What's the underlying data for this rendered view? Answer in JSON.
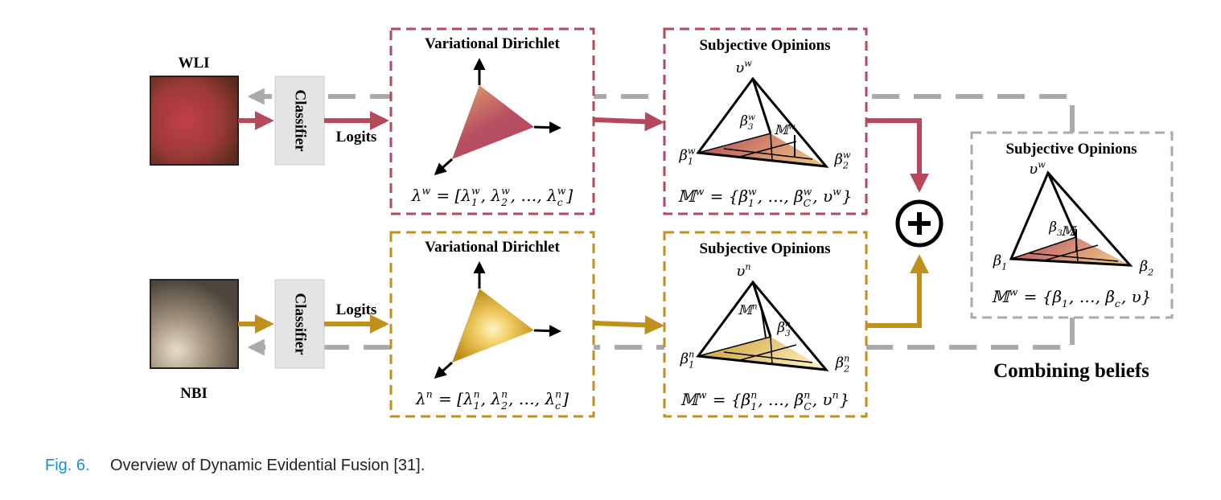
{
  "branches": [
    {
      "input": "WLI",
      "classifier": "Classifier",
      "logits": "Logits",
      "dirichlet": {
        "title": "Variational Dirichlet",
        "formula": [
          {
            "b": "λ",
            "sup": "w"
          },
          {
            "b": " = ["
          },
          {
            "b": "λ",
            "sub": "1",
            "sup": "w"
          },
          {
            "b": ", "
          },
          {
            "b": "λ",
            "sub": "2",
            "sup": "w"
          },
          {
            "b": ", …, "
          },
          {
            "b": "λ",
            "sub": "c",
            "sup": "w"
          },
          {
            "b": "]"
          }
        ]
      },
      "opinions": {
        "title": "Subjective Opinions",
        "top": [
          {
            "b": "υ",
            "sup": "w"
          }
        ],
        "beta3": [
          {
            "b": "β",
            "sub": "3",
            "sup": "w"
          }
        ],
        "mass": [
          {
            "b": "𝕄",
            "sup": "w"
          }
        ],
        "beta1": [
          {
            "b": "β",
            "sub": "1",
            "sup": "w"
          }
        ],
        "beta2": [
          {
            "b": "β",
            "sub": "2",
            "sup": "w"
          }
        ],
        "formula": [
          {
            "b": "𝕄",
            "sup": "w"
          },
          {
            "b": " = {"
          },
          {
            "b": "β",
            "sub": "1",
            "sup": "w"
          },
          {
            "b": ", …, "
          },
          {
            "b": "β",
            "sub": "C",
            "sup": "w"
          },
          {
            "b": ", "
          },
          {
            "b": "υ",
            "sup": "w"
          },
          {
            "b": "}"
          }
        ]
      }
    },
    {
      "input": "NBI",
      "classifier": "Classifier",
      "logits": "Logits",
      "dirichlet": {
        "title": "Variational Dirichlet",
        "formula": [
          {
            "b": "λ",
            "sup": "n"
          },
          {
            "b": " = ["
          },
          {
            "b": "λ",
            "sub": "1",
            "sup": "n"
          },
          {
            "b": ", "
          },
          {
            "b": "λ",
            "sub": "2",
            "sup": "n"
          },
          {
            "b": ", …, "
          },
          {
            "b": "λ",
            "sub": "c",
            "sup": "n"
          },
          {
            "b": "]"
          }
        ]
      },
      "opinions": {
        "title": "Subjective Opinions",
        "top": [
          {
            "b": "υ",
            "sup": "n"
          }
        ],
        "beta3": [
          {
            "b": "β",
            "sub": "3",
            "sup": "n"
          }
        ],
        "mass": [
          {
            "b": "𝕄",
            "sup": "n"
          }
        ],
        "beta1": [
          {
            "b": "β",
            "sub": "1",
            "sup": "n"
          }
        ],
        "beta2": [
          {
            "b": "β",
            "sub": "2",
            "sup": "n"
          }
        ],
        "formula": [
          {
            "b": "𝕄",
            "sup": "w"
          },
          {
            "b": " = {"
          },
          {
            "b": "β",
            "sub": "1",
            "sup": "n"
          },
          {
            "b": ", …, "
          },
          {
            "b": "β",
            "sub": "C",
            "sup": "n"
          },
          {
            "b": ", "
          },
          {
            "b": "υ",
            "sup": "n"
          },
          {
            "b": "}"
          }
        ]
      }
    }
  ],
  "fusion": {
    "title": "Subjective Opinions",
    "top": [
      {
        "b": "υ",
        "sup": "w"
      }
    ],
    "beta3": [
      {
        "b": "β",
        "sub": "3"
      }
    ],
    "mass": [
      {
        "b": "𝕄"
      }
    ],
    "beta1": [
      {
        "b": "β",
        "sub": "1"
      }
    ],
    "beta2": [
      {
        "b": "β",
        "sub": "2"
      }
    ],
    "formula": [
      {
        "b": "𝕄",
        "sup": "w"
      },
      {
        "b": " = {"
      },
      {
        "b": "β",
        "sub": "1"
      },
      {
        "b": ", …, "
      },
      {
        "b": "β",
        "sub": "c"
      },
      {
        "b": ", "
      },
      {
        "b": "υ"
      },
      {
        "b": "}"
      }
    ],
    "caption": "Combining beliefs"
  },
  "figure_caption": {
    "label": "Fig. 6.",
    "text": "Overview of Dynamic Evidential Fusion [31]."
  }
}
